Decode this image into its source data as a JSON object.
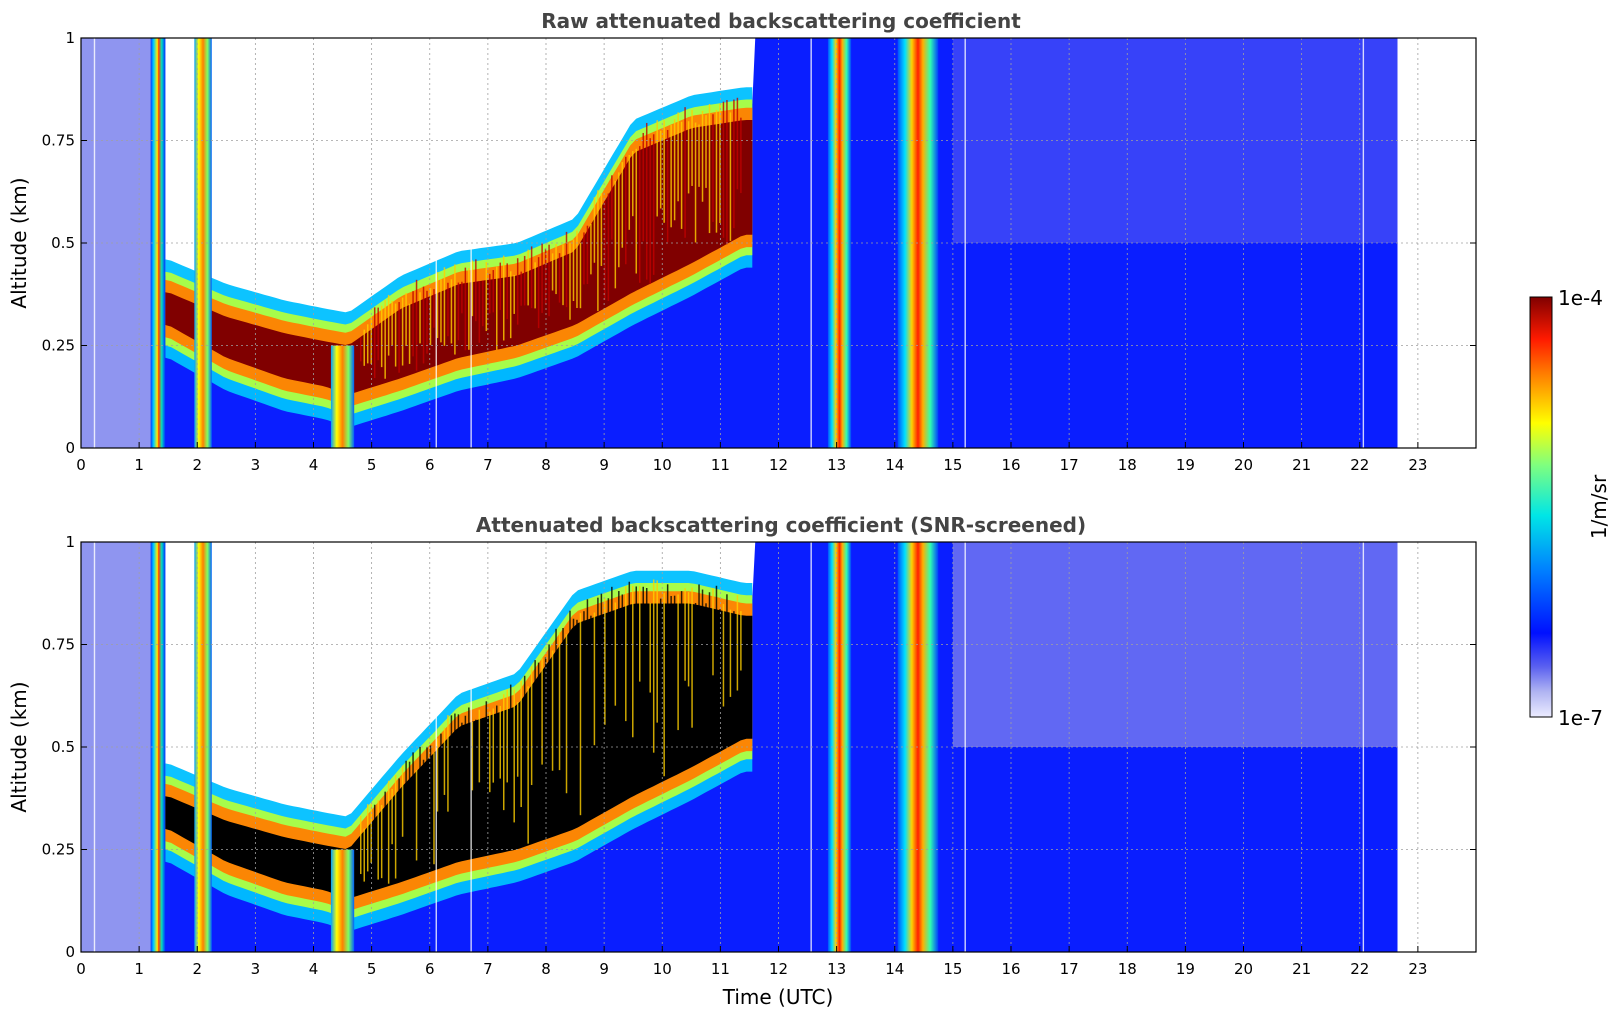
{
  "chart_data": [
    {
      "type": "heatmap",
      "title": "Raw attenuated backscattering coefficient",
      "ylabel": "Altitude (km)",
      "xlabel": "",
      "xlim": [
        0,
        24
      ],
      "ylim": [
        0,
        1
      ],
      "x_ticks": [
        "0",
        "1",
        "2",
        "3",
        "4",
        "5",
        "6",
        "7",
        "8",
        "9",
        "10",
        "11",
        "12",
        "13",
        "14",
        "15",
        "16",
        "17",
        "18",
        "19",
        "20",
        "21",
        "22",
        "23"
      ],
      "y_ticks": [
        "0",
        "0.25",
        "0.5",
        "0.75",
        "1"
      ],
      "grid": true,
      "data_end_hour": 22.65,
      "aerosol_layer_top_km": [
        [
          1.5,
          0.38
        ],
        [
          2.5,
          0.32
        ],
        [
          3.5,
          0.28
        ],
        [
          4.2,
          0.26
        ],
        [
          4.6,
          0.25
        ],
        [
          5.5,
          0.34
        ],
        [
          6.5,
          0.4
        ],
        [
          7.5,
          0.42
        ],
        [
          8.5,
          0.48
        ],
        [
          9.5,
          0.72
        ],
        [
          10.5,
          0.78
        ],
        [
          11.4,
          0.8
        ]
      ],
      "aerosol_layer_base_km": [
        [
          1.5,
          0.3
        ],
        [
          2.5,
          0.22
        ],
        [
          3.5,
          0.17
        ],
        [
          4.2,
          0.15
        ],
        [
          4.6,
          0.13
        ],
        [
          5.5,
          0.17
        ],
        [
          6.5,
          0.22
        ],
        [
          7.5,
          0.25
        ],
        [
          8.5,
          0.3
        ],
        [
          9.5,
          0.38
        ],
        [
          10.5,
          0.45
        ],
        [
          11.4,
          0.52
        ]
      ],
      "precip_columns_hours": [
        [
          1.2,
          1.45
        ],
        [
          1.95,
          2.25
        ],
        [
          4.3,
          4.7
        ],
        [
          12.85,
          13.25
        ],
        [
          14.05,
          14.75
        ]
      ],
      "masked": false
    },
    {
      "type": "heatmap",
      "title": "Attenuated backscattering coefficient (SNR-screened)",
      "ylabel": "Altitude (km)",
      "xlabel": "Time (UTC)",
      "xlim": [
        0,
        24
      ],
      "ylim": [
        0,
        1
      ],
      "x_ticks": [
        "0",
        "1",
        "2",
        "3",
        "4",
        "5",
        "6",
        "7",
        "8",
        "9",
        "10",
        "11",
        "12",
        "13",
        "14",
        "15",
        "16",
        "17",
        "18",
        "19",
        "20",
        "21",
        "22",
        "23"
      ],
      "y_ticks": [
        "0",
        "0.25",
        "0.5",
        "0.75",
        "1"
      ],
      "grid": true,
      "data_end_hour": 22.65,
      "aerosol_layer_top_km": [
        [
          1.5,
          0.38
        ],
        [
          2.5,
          0.32
        ],
        [
          3.5,
          0.28
        ],
        [
          4.2,
          0.26
        ],
        [
          4.6,
          0.25
        ],
        [
          5.5,
          0.4
        ],
        [
          6.5,
          0.55
        ],
        [
          7.5,
          0.6
        ],
        [
          8.5,
          0.8
        ],
        [
          9.5,
          0.85
        ],
        [
          10.5,
          0.85
        ],
        [
          11.4,
          0.82
        ]
      ],
      "aerosol_layer_base_km": [
        [
          1.5,
          0.3
        ],
        [
          2.5,
          0.22
        ],
        [
          3.5,
          0.17
        ],
        [
          4.2,
          0.15
        ],
        [
          4.6,
          0.13
        ],
        [
          5.5,
          0.17
        ],
        [
          6.5,
          0.22
        ],
        [
          7.5,
          0.25
        ],
        [
          8.5,
          0.3
        ],
        [
          9.5,
          0.38
        ],
        [
          10.5,
          0.45
        ],
        [
          11.4,
          0.52
        ]
      ],
      "precip_columns_hours": [
        [
          1.2,
          1.45
        ],
        [
          1.95,
          2.25
        ],
        [
          4.3,
          4.7
        ],
        [
          12.85,
          13.25
        ],
        [
          14.05,
          14.75
        ]
      ],
      "masked": true
    }
  ],
  "colorbar": {
    "label": "1/m/sr",
    "max_label": "1e-4",
    "min_label": "1e-7",
    "scale": "log",
    "colormap": "jet",
    "range": [
      1e-07,
      0.0001
    ]
  },
  "colors": {
    "background_signal": "#0a1eff",
    "low_signal": "#8f95f0",
    "no_data": "#ffffff",
    "screened": "#000000",
    "peak": "#800000"
  }
}
